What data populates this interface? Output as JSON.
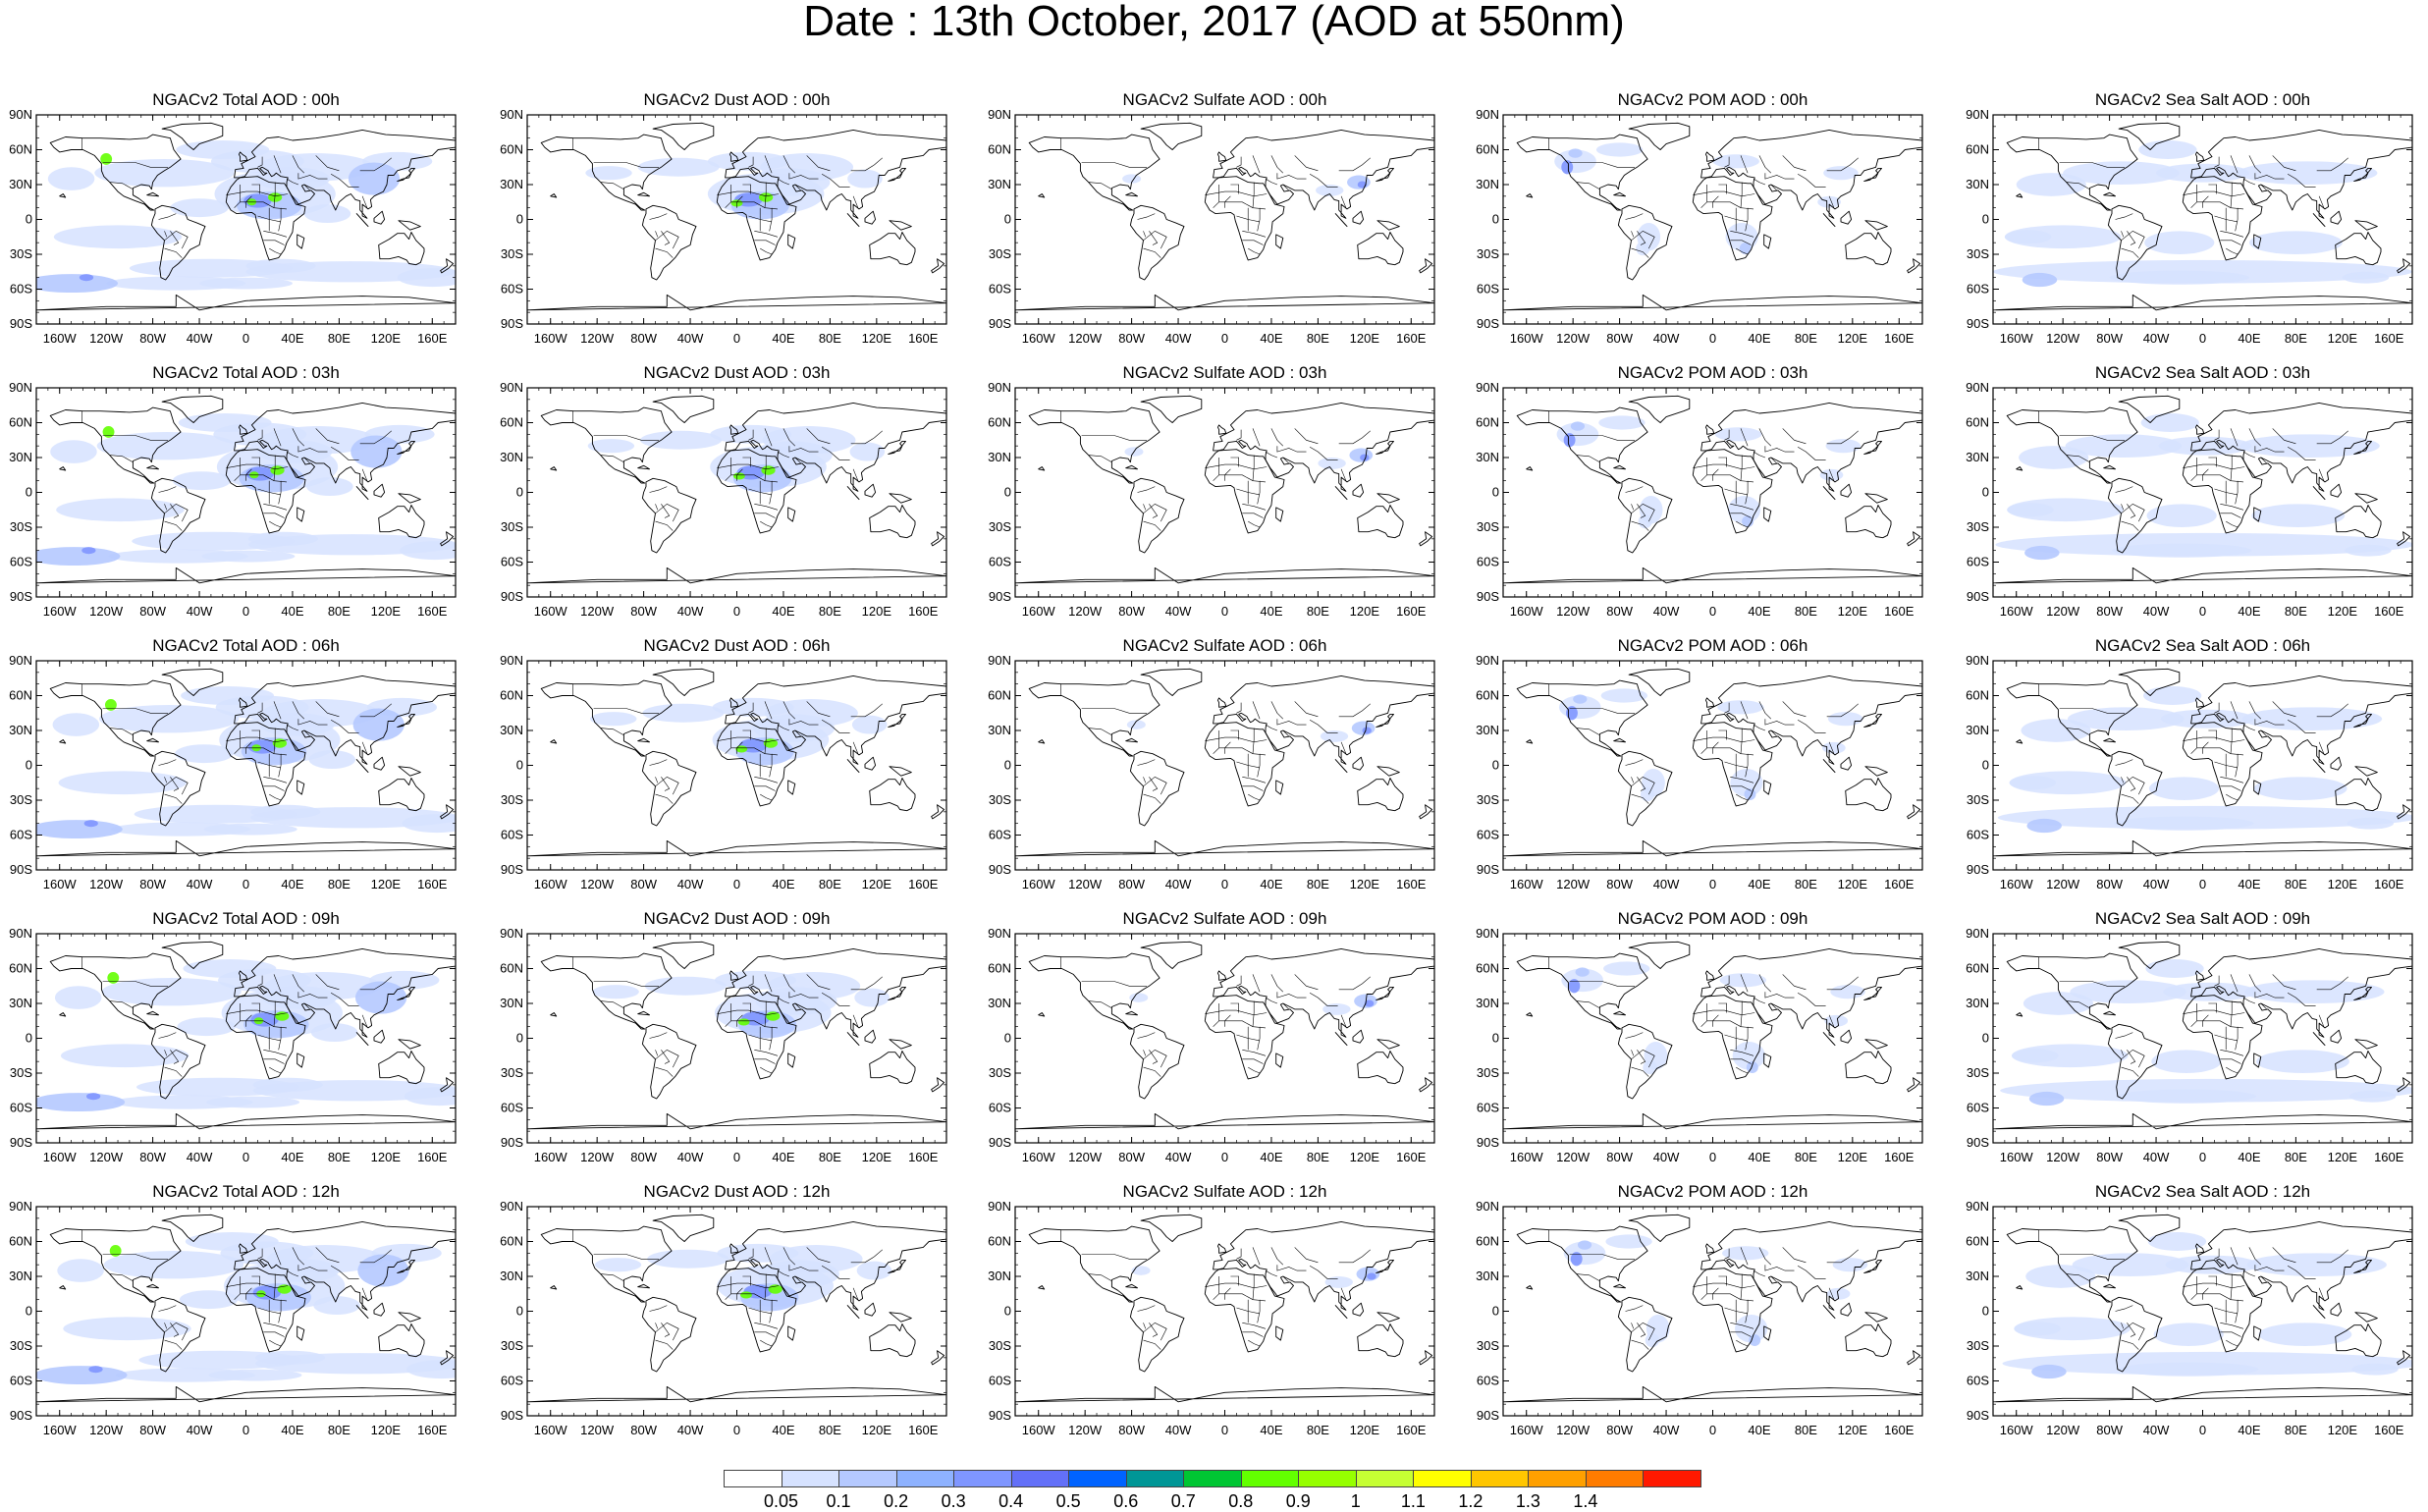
{
  "title": "Date : 13th October, 2017 (AOD at 550nm)",
  "panels": [
    [
      "NGACv2 Total AOD : 00h",
      "NGACv2 Dust AOD : 00h",
      "NGACv2 Sulfate AOD : 00h",
      "NGACv2 POM AOD : 00h",
      "NGACv2 Sea Salt AOD : 00h"
    ],
    [
      "NGACv2 Total AOD : 03h",
      "NGACv2 Dust AOD : 03h",
      "NGACv2 Sulfate AOD : 03h",
      "NGACv2 POM AOD : 03h",
      "NGACv2 Sea Salt AOD : 03h"
    ],
    [
      "NGACv2 Total AOD : 06h",
      "NGACv2 Dust AOD : 06h",
      "NGACv2 Sulfate AOD : 06h",
      "NGACv2 POM AOD : 06h",
      "NGACv2 Sea Salt AOD : 06h"
    ],
    [
      "NGACv2 Total AOD : 09h",
      "NGACv2 Dust AOD : 09h",
      "NGACv2 Sulfate AOD : 09h",
      "NGACv2 POM AOD : 09h",
      "NGACv2 Sea Salt  AOD : 09h"
    ],
    [
      "NGACv2 Total AOD : 12h",
      "NGACv2 Dust AOD : 12h",
      "NGACv2 Sulfate AOD : 12h",
      "NGACv2 POM  AOD : 12h",
      "NGACv2 Sea Salt  AOD : 12h"
    ]
  ],
  "lat_ticks": [
    "90N",
    "60N",
    "30N",
    "0",
    "30S",
    "60S",
    "90S"
  ],
  "lon_ticks": [
    "160W",
    "120W",
    "80W",
    "40W",
    "0",
    "40E",
    "80E",
    "120E",
    "160E"
  ],
  "colorbar": {
    "labels": [
      "0.05",
      "0.1",
      "0.2",
      "0.3",
      "0.4",
      "0.5",
      "0.6",
      "0.7",
      "0.8",
      "0.9",
      "1",
      "1.1",
      "1.2",
      "1.3",
      "1.4"
    ],
    "colors": [
      "#ffffff",
      "#d6e2ff",
      "#b5c9ff",
      "#8eb2ff",
      "#7f96ff",
      "#6370f8",
      "#0063ff",
      "#009696",
      "#00c633",
      "#63ff00",
      "#96ff00",
      "#c6ff33",
      "#ffff00",
      "#ffc600",
      "#ffa000",
      "#ff7c00",
      "#ff1900"
    ]
  },
  "colors": {
    "aod_low": "#d6e2ff",
    "aod_mid": "#b5c9ff",
    "aod_high": "#7f96ff",
    "aod_peak": "#63ff00",
    "coast": "#000000"
  }
}
